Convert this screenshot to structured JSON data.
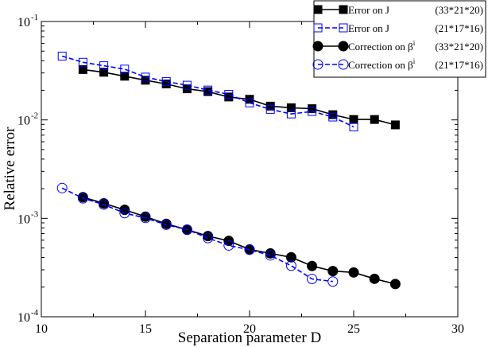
{
  "chart_data": {
    "type": "line",
    "xlabel": "Separation parameter D",
    "ylabel": "Relative error",
    "xlim": [
      10,
      30
    ],
    "ylim": [
      0.0001,
      0.1
    ],
    "yscale": "log",
    "xticks": [
      10,
      15,
      20,
      25,
      30
    ],
    "xtick_labels": [
      "10",
      "15",
      "20",
      "25",
      "30"
    ],
    "yticks": [
      0.0001,
      0.001,
      0.01,
      0.1
    ],
    "ytick_labels": [
      {
        "base": "10",
        "exp": "-4"
      },
      {
        "base": "10",
        "exp": "-3"
      },
      {
        "base": "10",
        "exp": "-2"
      },
      {
        "base": "10",
        "exp": "-1"
      }
    ],
    "grid": false,
    "legend_position": "top-right",
    "series": [
      {
        "name": "Error on J",
        "grid_label": "(33*21*20)",
        "color": "#000000",
        "marker": "square-filled",
        "line": "solid",
        "x": [
          12,
          13,
          14,
          15,
          16,
          17,
          18,
          19,
          20,
          21,
          22,
          23,
          24,
          25,
          26,
          27
        ],
        "y": [
          0.0325,
          0.0305,
          0.0278,
          0.0253,
          0.0232,
          0.0207,
          0.0194,
          0.0171,
          0.0162,
          0.0138,
          0.0133,
          0.013,
          0.0113,
          0.0101,
          0.0101,
          0.0089
        ]
      },
      {
        "name": "Error on J",
        "grid_label": "(21*17*16)",
        "color": "#0000ff",
        "marker": "square-open",
        "line": "dashed",
        "x": [
          11,
          12,
          13,
          14,
          15,
          16,
          17,
          18,
          19,
          20,
          21,
          22,
          23,
          24,
          25
        ],
        "y": [
          0.0445,
          0.0385,
          0.0355,
          0.0328,
          0.0272,
          0.0245,
          0.0225,
          0.0201,
          0.0182,
          0.0149,
          0.0128,
          0.0115,
          0.0122,
          0.0107,
          0.0085
        ]
      },
      {
        "name": "Correction on β",
        "name_sup": "i",
        "grid_label": "(33*21*20)",
        "color": "#000000",
        "marker": "circle-filled",
        "line": "solid",
        "x": [
          12,
          13,
          14,
          15,
          16,
          17,
          18,
          19,
          20,
          21,
          22,
          23,
          24,
          25,
          26,
          27
        ],
        "y": [
          0.00164,
          0.00142,
          0.00122,
          0.00104,
          0.00088,
          0.000765,
          0.00066,
          0.00059,
          0.000483,
          0.00044,
          0.000402,
          0.000328,
          0.000291,
          0.000282,
          0.000243,
          0.000215
        ]
      },
      {
        "name": "Correction on β",
        "name_sup": "i",
        "grid_label": "(21*17*16)",
        "color": "#0000ff",
        "marker": "circle-open",
        "line": "dashed",
        "x": [
          11,
          12,
          13,
          14,
          15,
          16,
          17,
          18,
          19,
          20,
          21,
          22,
          23,
          24
        ],
        "y": [
          0.00203,
          0.0016,
          0.00138,
          0.00113,
          0.00101,
          0.00086,
          0.000768,
          0.00063,
          0.00053,
          0.00048,
          0.00042,
          0.00033,
          0.000242,
          0.000228
        ]
      }
    ]
  }
}
